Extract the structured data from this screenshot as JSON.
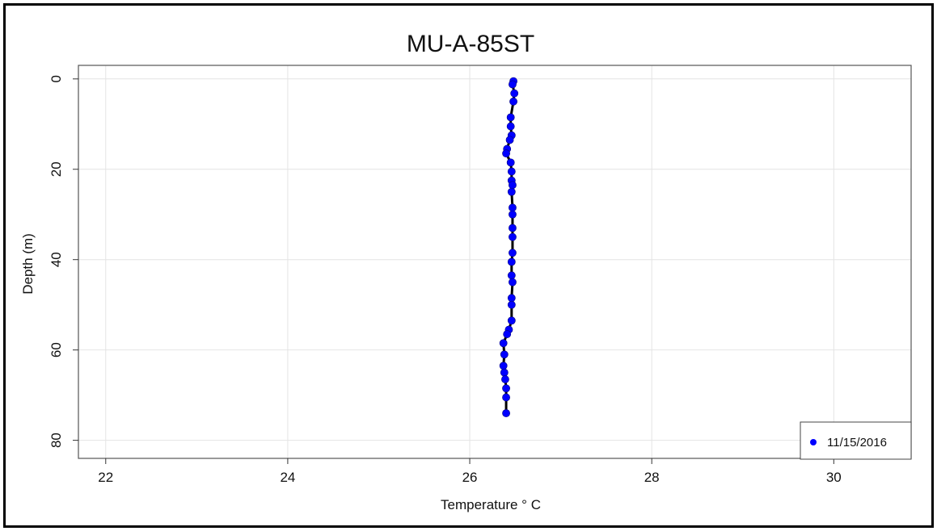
{
  "chart_data": {
    "type": "scatter",
    "title": "MU-A-85ST",
    "xlabel": "Temperature ° C",
    "ylabel": "Depth (m)",
    "xlim": [
      21.7,
      30.85
    ],
    "ylim": [
      84.0,
      -3.0
    ],
    "y_inverted": true,
    "xticks": [
      22,
      24,
      26,
      28,
      30
    ],
    "yticks": [
      0,
      20,
      40,
      60,
      80
    ],
    "grid": true,
    "legend_position": "bottom-right",
    "series": [
      {
        "name": "11/15/2016",
        "color": "#0000ff",
        "marker": "circle",
        "line_color": "#000000",
        "points": [
          [
            26.48,
            0.5
          ],
          [
            26.47,
            1.2
          ],
          [
            26.49,
            3.2
          ],
          [
            26.48,
            5.0
          ],
          [
            26.45,
            8.5
          ],
          [
            26.45,
            10.5
          ],
          [
            26.46,
            12.5
          ],
          [
            26.44,
            13.5
          ],
          [
            26.41,
            15.5
          ],
          [
            26.4,
            16.5
          ],
          [
            26.45,
            18.5
          ],
          [
            26.46,
            20.5
          ],
          [
            26.46,
            22.5
          ],
          [
            26.47,
            23.5
          ],
          [
            26.46,
            25.0
          ],
          [
            26.47,
            28.5
          ],
          [
            26.47,
            30.0
          ],
          [
            26.47,
            33.0
          ],
          [
            26.47,
            35.0
          ],
          [
            26.47,
            38.5
          ],
          [
            26.46,
            40.5
          ],
          [
            26.46,
            43.5
          ],
          [
            26.47,
            45.0
          ],
          [
            26.46,
            48.5
          ],
          [
            26.46,
            50.0
          ],
          [
            26.46,
            53.5
          ],
          [
            26.43,
            55.5
          ],
          [
            26.41,
            56.5
          ],
          [
            26.37,
            58.5
          ],
          [
            26.38,
            61.0
          ],
          [
            26.37,
            63.5
          ],
          [
            26.38,
            65.0
          ],
          [
            26.39,
            66.5
          ],
          [
            26.4,
            68.5
          ],
          [
            26.4,
            70.5
          ],
          [
            26.4,
            74.0
          ]
        ]
      }
    ]
  }
}
